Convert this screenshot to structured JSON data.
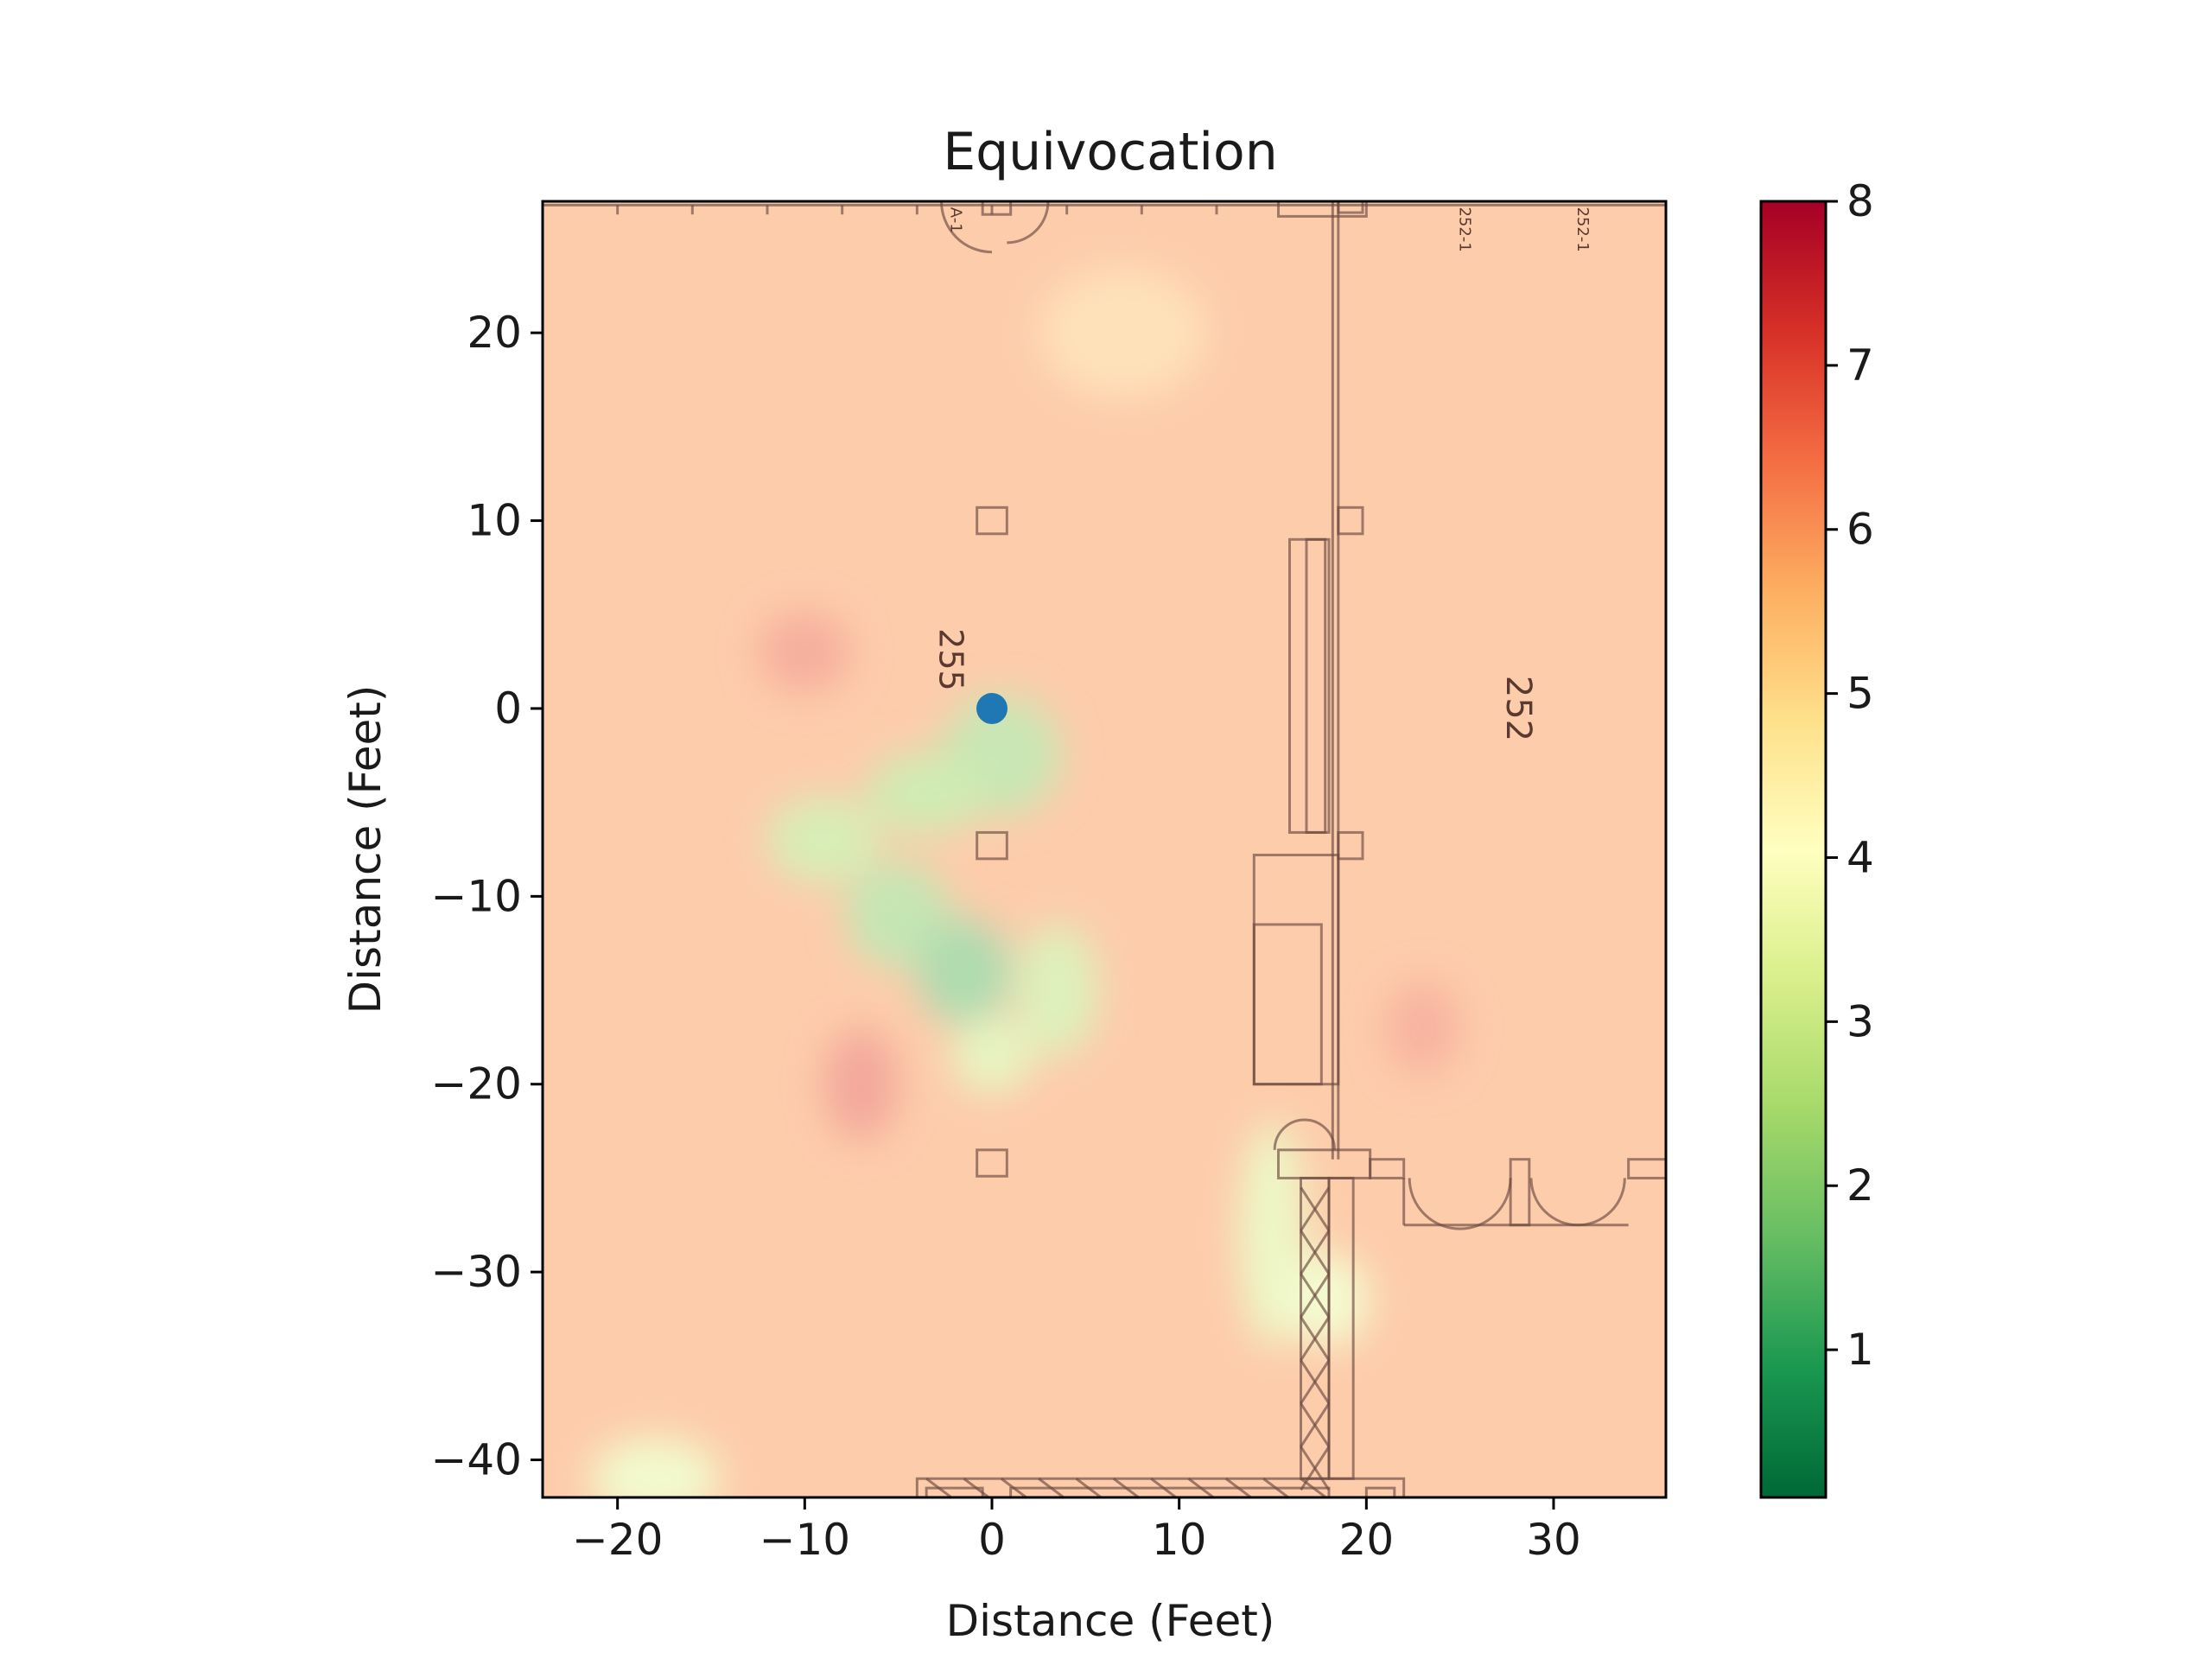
{
  "chart_data": {
    "type": "heatmap",
    "title": "Equivocation",
    "xlabel": "Distance (Feet)",
    "ylabel": "Distance (Feet)",
    "xlim": [
      -24,
      36
    ],
    "ylim": [
      -42,
      27
    ],
    "xticks": [
      -20,
      -10,
      0,
      10,
      20,
      30
    ],
    "yticks": [
      -40,
      -30,
      -20,
      -10,
      0,
      10,
      20
    ],
    "xtick_labels": [
      "−20",
      "−10",
      "0",
      "10",
      "20",
      "30"
    ],
    "ytick_labels": [
      "−40",
      "−30",
      "−20",
      "−10",
      "0",
      "10",
      "20"
    ],
    "colormap": "RdYlGn_r",
    "colorbar_range": [
      0.1,
      8
    ],
    "colorbar_ticks": [
      1,
      2,
      3,
      4,
      5,
      6,
      7,
      8
    ],
    "colorbar_tick_labels": [
      "1",
      "2",
      "3",
      "4",
      "5",
      "6",
      "7",
      "8"
    ],
    "background_value": 5.9,
    "regions": [
      {
        "x": 0.5,
        "y": -2.5,
        "sx": 3.2,
        "sy": 3.2,
        "value": 2.2
      },
      {
        "x": -3.5,
        "y": -4.5,
        "sx": 3.2,
        "sy": 2.2,
        "value": 2.4
      },
      {
        "x": -9.0,
        "y": -7.0,
        "sx": 3.0,
        "sy": 2.3,
        "value": 2.6
      },
      {
        "x": -5.0,
        "y": -11.0,
        "sx": 2.8,
        "sy": 2.8,
        "value": 2.1
      },
      {
        "x": -1.5,
        "y": -14.0,
        "sx": 2.5,
        "sy": 2.8,
        "value": 1.6
      },
      {
        "x": 3.5,
        "y": -15.0,
        "sx": 2.2,
        "sy": 3.5,
        "value": 2.8
      },
      {
        "x": 0.0,
        "y": -18.5,
        "sx": 2.2,
        "sy": 2.0,
        "value": 3.1
      },
      {
        "x": 15.0,
        "y": -28.0,
        "sx": 1.8,
        "sy": 6.0,
        "value": 3.3
      },
      {
        "x": 18.0,
        "y": -31.5,
        "sx": 2.2,
        "sy": 2.5,
        "value": 3.6
      },
      {
        "x": -18.0,
        "y": -41.0,
        "sx": 3.5,
        "sy": 2.2,
        "value": 3.5
      },
      {
        "x": 7.0,
        "y": 20.0,
        "sx": 4.5,
        "sy": 3.5,
        "value": 5.3
      },
      {
        "x": -10.0,
        "y": 3.0,
        "sx": 2.5,
        "sy": 2.2,
        "value": 6.6
      },
      {
        "x": -7.0,
        "y": -20.0,
        "sx": 2.0,
        "sy": 3.0,
        "value": 6.8
      },
      {
        "x": 23.0,
        "y": -17.0,
        "sx": 2.0,
        "sy": 2.5,
        "value": 6.5
      }
    ],
    "marker": {
      "x": 0,
      "y": 0,
      "color": "#1f77b4"
    },
    "room_labels": [
      {
        "text": "255",
        "x": -2.8,
        "y": 2.6,
        "rotation": 90,
        "size": 38
      },
      {
        "text": "252",
        "x": 27.5,
        "y": 0.0,
        "rotation": 90,
        "size": 40
      },
      {
        "text": "A-1",
        "x": -2.2,
        "y": 26.0,
        "rotation": 90,
        "size": 18
      },
      {
        "text": "252-1",
        "x": 25.0,
        "y": 25.5,
        "rotation": 90,
        "size": 18
      },
      {
        "text": "252-1",
        "x": 31.3,
        "y": 25.5,
        "rotation": 90,
        "size": 18
      }
    ]
  }
}
